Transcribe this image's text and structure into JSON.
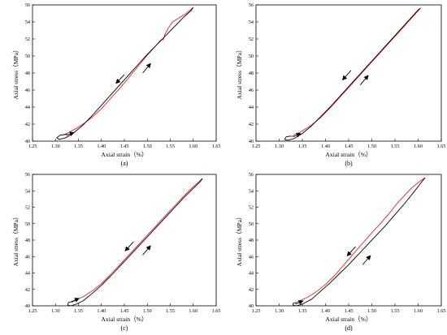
{
  "colors": {
    "unloading": "#e8211d",
    "loading": "#000000",
    "axis": "#000000",
    "background": "#ffffff"
  },
  "chart_data": [
    {
      "type": "line",
      "caption": "(a)",
      "xlabel": "Axial strain（%）",
      "ylabel": "Axial stress（MPa）",
      "xlim": [
        1.25,
        1.65
      ],
      "ylim": [
        40,
        56
      ],
      "xticks": [
        "1.25",
        "1.30",
        "1.35",
        "1.40",
        "1.45",
        "1.50",
        "1.55",
        "1.60",
        "1.65"
      ],
      "yticks": [
        "40",
        "42",
        "44",
        "46",
        "48",
        "50",
        "52",
        "54",
        "56"
      ],
      "grid": false,
      "series": [
        {
          "color": "#e8211d",
          "x": [
            1.6,
            1.585,
            1.57,
            1.555,
            1.545,
            1.538,
            1.535,
            1.53,
            1.52,
            1.5,
            1.48,
            1.46,
            1.44,
            1.42,
            1.4,
            1.38,
            1.36,
            1.345,
            1.335,
            1.325,
            1.315
          ],
          "y": [
            55.7,
            55.0,
            54.5,
            54.0,
            53.2,
            52.5,
            51.9,
            51.9,
            51.3,
            50.1,
            48.8,
            47.5,
            46.2,
            45.0,
            43.8,
            42.8,
            42.0,
            41.5,
            41.2,
            40.9,
            40.7
          ]
        },
        {
          "color": "#000000",
          "x": [
            1.325,
            1.31,
            1.303,
            1.308,
            1.322,
            1.338,
            1.36,
            1.38,
            1.4,
            1.42,
            1.44,
            1.46,
            1.48,
            1.5,
            1.52,
            1.54,
            1.56,
            1.58,
            1.595,
            1.6
          ],
          "y": [
            40.8,
            40.7,
            40.4,
            40.2,
            40.4,
            40.9,
            41.9,
            43.0,
            44.2,
            45.4,
            46.6,
            47.8,
            49.0,
            50.2,
            51.3,
            52.4,
            53.5,
            54.6,
            55.3,
            55.7
          ]
        }
      ],
      "arrows": [
        {
          "from": [
            1.45,
            47.8
          ],
          "to": [
            1.432,
            46.8
          ]
        },
        {
          "from": [
            1.49,
            48.0
          ],
          "to": [
            1.507,
            49.1
          ]
        },
        {
          "from": [
            1.324,
            40.7
          ],
          "to": [
            1.34,
            41.0
          ]
        }
      ]
    },
    {
      "type": "line",
      "caption": "(b)",
      "xlabel": "Axial strain（%）",
      "ylabel": "Axial stress（MPa）",
      "xlim": [
        1.25,
        1.65
      ],
      "ylim": [
        40,
        56
      ],
      "xticks": [
        "1.25",
        "1.30",
        "1.35",
        "1.40",
        "1.45",
        "1.50",
        "1.55",
        "1.60",
        "1.65"
      ],
      "yticks": [
        "40",
        "42",
        "44",
        "46",
        "48",
        "50",
        "52",
        "54",
        "56"
      ],
      "grid": false,
      "series": [
        {
          "color": "#e8211d",
          "x": [
            1.605,
            1.59,
            1.57,
            1.55,
            1.53,
            1.51,
            1.49,
            1.47,
            1.45,
            1.43,
            1.41,
            1.39,
            1.37,
            1.35,
            1.335,
            1.325
          ],
          "y": [
            55.6,
            54.7,
            53.5,
            52.3,
            51.1,
            49.9,
            48.7,
            47.5,
            46.3,
            45.1,
            43.9,
            42.8,
            41.9,
            41.2,
            40.8,
            40.5
          ]
        },
        {
          "color": "#000000",
          "x": [
            1.325,
            1.315,
            1.312,
            1.318,
            1.332,
            1.35,
            1.37,
            1.39,
            1.41,
            1.43,
            1.45,
            1.47,
            1.49,
            1.51,
            1.53,
            1.55,
            1.57,
            1.59,
            1.6,
            1.605
          ],
          "y": [
            40.6,
            40.5,
            40.2,
            40.1,
            40.3,
            40.9,
            41.8,
            42.9,
            44.0,
            45.2,
            46.4,
            47.6,
            48.8,
            50.0,
            51.2,
            52.4,
            53.6,
            54.8,
            55.4,
            55.6
          ]
        }
      ],
      "arrows": [
        {
          "from": [
            1.455,
            48.3
          ],
          "to": [
            1.437,
            47.2
          ]
        },
        {
          "from": [
            1.475,
            46.6
          ],
          "to": [
            1.492,
            47.7
          ]
        },
        {
          "from": [
            1.33,
            40.5
          ],
          "to": [
            1.346,
            40.9
          ]
        }
      ]
    },
    {
      "type": "line",
      "caption": "(c)",
      "xlabel": "Axial strain（%）",
      "ylabel": "Axial stress（MPa）",
      "xlim": [
        1.25,
        1.65
      ],
      "ylim": [
        40,
        56
      ],
      "xticks": [
        "1.25",
        "1.30",
        "1.35",
        "1.40",
        "1.45",
        "1.50",
        "1.55",
        "1.60",
        "1.65"
      ],
      "yticks": [
        "40",
        "42",
        "44",
        "46",
        "48",
        "50",
        "52",
        "54",
        "56"
      ],
      "grid": false,
      "series": [
        {
          "color": "#e8211d",
          "x": [
            1.62,
            1.6,
            1.58,
            1.56,
            1.54,
            1.52,
            1.5,
            1.48,
            1.46,
            1.44,
            1.42,
            1.4,
            1.38,
            1.36,
            1.345,
            1.335
          ],
          "y": [
            55.5,
            54.5,
            53.4,
            52.2,
            51.0,
            49.8,
            48.6,
            47.4,
            46.2,
            45.0,
            43.8,
            42.7,
            41.8,
            41.1,
            40.7,
            40.4
          ]
        },
        {
          "color": "#000000",
          "x": [
            1.335,
            1.328,
            1.327,
            1.333,
            1.345,
            1.36,
            1.38,
            1.4,
            1.42,
            1.44,
            1.46,
            1.48,
            1.5,
            1.52,
            1.54,
            1.56,
            1.58,
            1.6,
            1.615,
            1.62
          ],
          "y": [
            40.5,
            40.4,
            40.1,
            40.0,
            40.2,
            40.6,
            41.5,
            42.5,
            43.6,
            44.8,
            46.0,
            47.2,
            48.4,
            49.6,
            50.8,
            52.0,
            53.2,
            54.3,
            55.1,
            55.5
          ]
        }
      ],
      "arrows": [
        {
          "from": [
            1.47,
            47.8
          ],
          "to": [
            1.452,
            46.7
          ]
        },
        {
          "from": [
            1.49,
            46.2
          ],
          "to": [
            1.507,
            47.3
          ]
        },
        {
          "from": [
            1.335,
            40.5
          ],
          "to": [
            1.351,
            40.9
          ]
        }
      ]
    },
    {
      "type": "line",
      "caption": "(d)",
      "xlabel": "Axial strain（%）",
      "ylabel": "Axial stress（MPa）",
      "xlim": [
        1.25,
        1.65
      ],
      "ylim": [
        40,
        56
      ],
      "xticks": [
        "1.25",
        "1.30",
        "1.35",
        "1.40",
        "1.45",
        "1.50",
        "1.55",
        "1.60",
        "1.65"
      ],
      "yticks": [
        "40",
        "42",
        "44",
        "46",
        "48",
        "50",
        "52",
        "54",
        "56"
      ],
      "grid": false,
      "series": [
        {
          "color": "#e8211d",
          "x": [
            1.615,
            1.6,
            1.585,
            1.57,
            1.555,
            1.54,
            1.52,
            1.5,
            1.48,
            1.46,
            1.44,
            1.42,
            1.4,
            1.38,
            1.36,
            1.345,
            1.337
          ],
          "y": [
            55.6,
            55.0,
            54.3,
            53.4,
            52.5,
            51.4,
            50.1,
            48.9,
            47.6,
            46.3,
            45.0,
            43.7,
            42.6,
            41.7,
            41.0,
            40.6,
            40.4
          ]
        },
        {
          "color": "#000000",
          "x": [
            1.337,
            1.33,
            1.33,
            1.337,
            1.35,
            1.37,
            1.39,
            1.41,
            1.43,
            1.45,
            1.47,
            1.49,
            1.51,
            1.53,
            1.55,
            1.57,
            1.59,
            1.605,
            1.615
          ],
          "y": [
            40.4,
            40.3,
            40.1,
            40.0,
            40.2,
            40.8,
            41.8,
            42.8,
            43.9,
            45.0,
            46.2,
            47.4,
            48.6,
            49.8,
            51.1,
            52.4,
            53.8,
            54.9,
            55.6
          ]
        }
      ],
      "arrows": [
        {
          "from": [
            1.465,
            47.2
          ],
          "to": [
            1.447,
            46.1
          ]
        },
        {
          "from": [
            1.48,
            45.0
          ],
          "to": [
            1.497,
            46.1
          ]
        },
        {
          "from": [
            1.335,
            40.2
          ],
          "to": [
            1.351,
            40.6
          ]
        }
      ]
    }
  ]
}
